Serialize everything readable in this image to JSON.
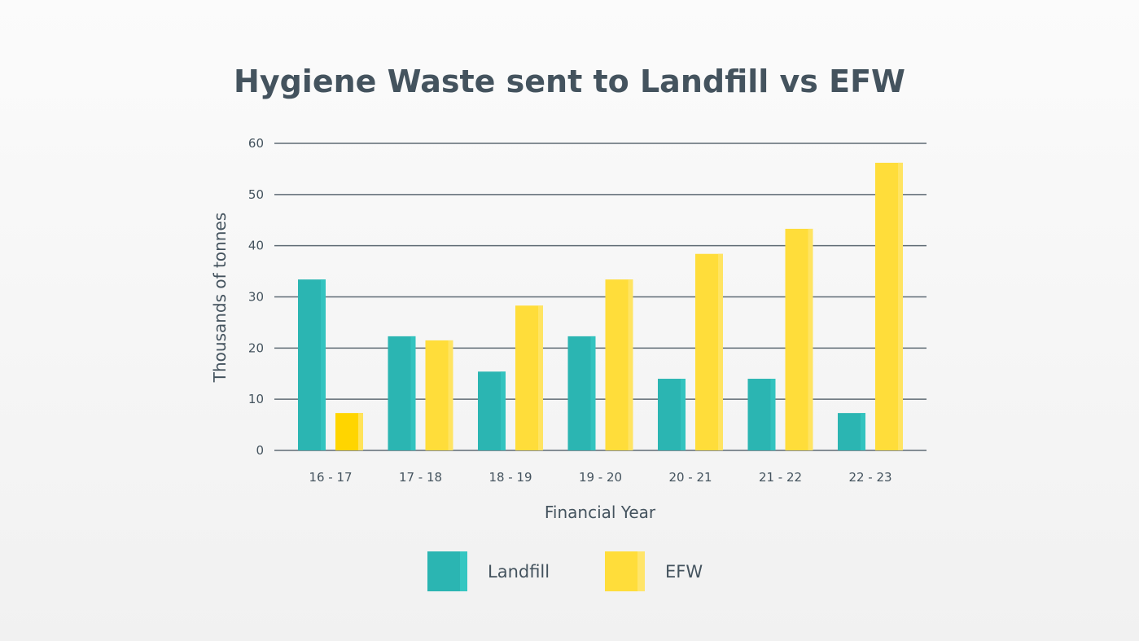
{
  "chart_data": {
    "type": "bar",
    "title": "Hygiene Waste sent to Landfill vs EFW",
    "xlabel": "Financial Year",
    "ylabel": "Thousands of tonnes",
    "ylim": [
      0,
      60
    ],
    "yticks": [
      0,
      10,
      20,
      30,
      40,
      50,
      60
    ],
    "grid": true,
    "legend_position": "bottom",
    "categories": [
      "16 - 17",
      "17 - 18",
      "18 - 19",
      "19 - 20",
      "20 - 21",
      "21 - 22",
      "22 - 23"
    ],
    "series": [
      {
        "name": "Landfill",
        "color": "#2bb5b2",
        "values": [
          33.4,
          22.3,
          15.4,
          22.3,
          14.0,
          14.0,
          7.3
        ]
      },
      {
        "name": "EFW",
        "color": "#ffdd3a",
        "values": [
          7.3,
          21.5,
          28.3,
          33.4,
          38.4,
          43.3,
          56.2
        ]
      }
    ]
  }
}
